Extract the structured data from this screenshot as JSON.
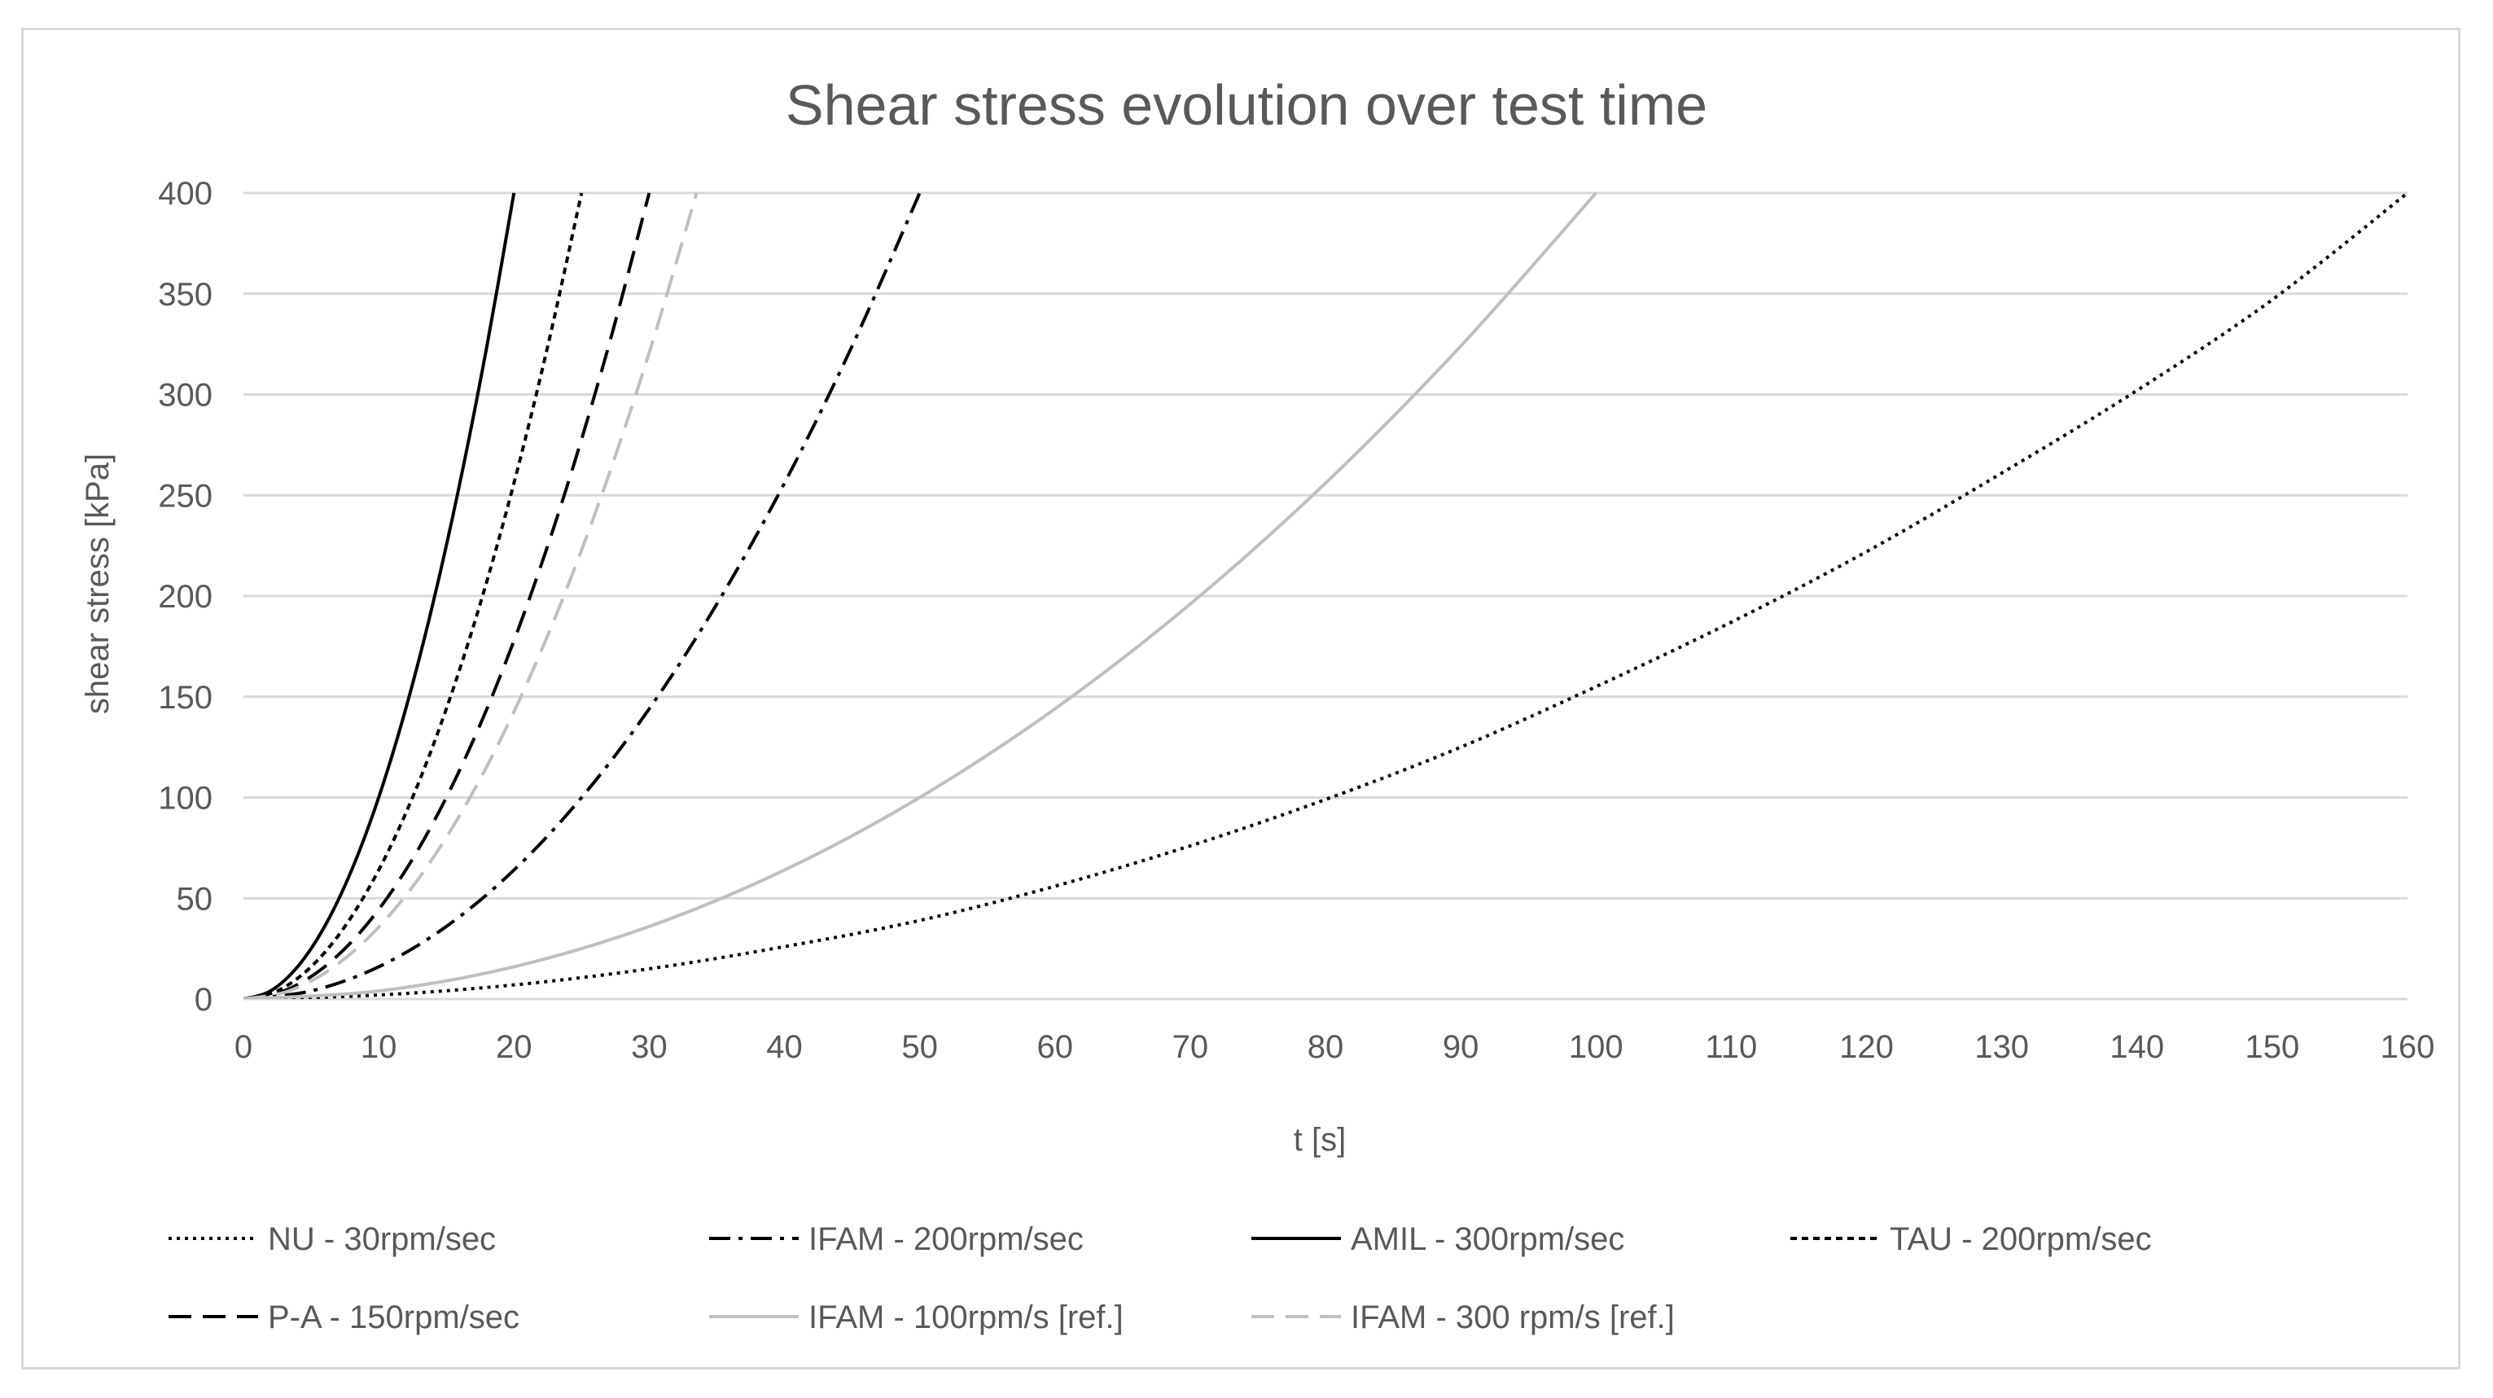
{
  "chart_data": {
    "type": "line",
    "title": "Shear stress evolution over test time",
    "xlabel": "t [s]",
    "ylabel": "shear stress [kPa]",
    "xlim": [
      0,
      160
    ],
    "ylim": [
      0,
      400
    ],
    "x_ticks": [
      0,
      10,
      20,
      30,
      40,
      50,
      60,
      70,
      80,
      90,
      100,
      110,
      120,
      130,
      140,
      150,
      160
    ],
    "y_ticks": [
      0,
      50,
      100,
      150,
      200,
      250,
      300,
      350,
      400
    ],
    "grid": "horizontal",
    "legend_position": "bottom",
    "series": [
      {
        "name": "NU - 30rpm/sec",
        "color": "#000000",
        "line_style": "dotted",
        "x": [
          0,
          10,
          20,
          30,
          40,
          50,
          60,
          70,
          80,
          90,
          100,
          110,
          120,
          130,
          140,
          150,
          160
        ],
        "y": [
          0,
          2,
          7,
          15,
          26,
          39,
          56,
          76,
          99,
          125,
          155,
          187,
          222,
          261,
          302,
          347,
          400
        ]
      },
      {
        "name": "IFAM - 200rpm/sec",
        "color": "#000000",
        "line_style": "dash-dot",
        "x": [
          0,
          5,
          10,
          15,
          20,
          25,
          30,
          35,
          40,
          45,
          50
        ],
        "y": [
          0,
          4,
          16,
          36,
          64,
          100,
          144,
          196,
          256,
          324,
          400
        ]
      },
      {
        "name": "AMIL - 300rpm/sec",
        "color": "#000000",
        "line_style": "solid",
        "x": [
          0,
          2,
          4,
          6,
          8,
          10,
          12,
          14,
          16,
          18,
          20
        ],
        "y": [
          0,
          4,
          16,
          36,
          64,
          100,
          144,
          196,
          256,
          324,
          400
        ]
      },
      {
        "name": "TAU - 200rpm/sec",
        "color": "#000000",
        "line_style": "short-dash",
        "x": [
          0,
          2.5,
          5,
          7.5,
          10,
          12.5,
          15,
          17.5,
          20,
          22.5,
          25
        ],
        "y": [
          0,
          4,
          16,
          36,
          64,
          100,
          144,
          196,
          256,
          324,
          400
        ]
      },
      {
        "name": "P-A - 150rpm/sec",
        "color": "#000000",
        "line_style": "long-dash",
        "x": [
          0,
          3,
          6,
          9,
          12,
          15,
          18,
          21,
          24,
          27,
          30
        ],
        "y": [
          0,
          4,
          16,
          36,
          64,
          100,
          144,
          196,
          256,
          324,
          400
        ]
      },
      {
        "name": "IFAM - 100rpm/s [ref.]",
        "color": "#bfbfbf",
        "line_style": "solid",
        "x": [
          0,
          10,
          20,
          30,
          40,
          50,
          60,
          70,
          80,
          90,
          100
        ],
        "y": [
          0,
          4,
          16,
          36,
          64,
          100,
          144,
          196,
          256,
          324,
          400
        ]
      },
      {
        "name": "IFAM - 300 rpm/s [ref.]",
        "color": "#bfbfbf",
        "line_style": "long-dash",
        "x": [
          0,
          3.35,
          6.7,
          10.05,
          13.4,
          16.75,
          20.1,
          23.45,
          26.8,
          30.15,
          33.5
        ],
        "y": [
          0,
          4,
          16,
          36,
          64,
          100,
          144,
          196,
          256,
          324,
          400
        ]
      }
    ]
  }
}
